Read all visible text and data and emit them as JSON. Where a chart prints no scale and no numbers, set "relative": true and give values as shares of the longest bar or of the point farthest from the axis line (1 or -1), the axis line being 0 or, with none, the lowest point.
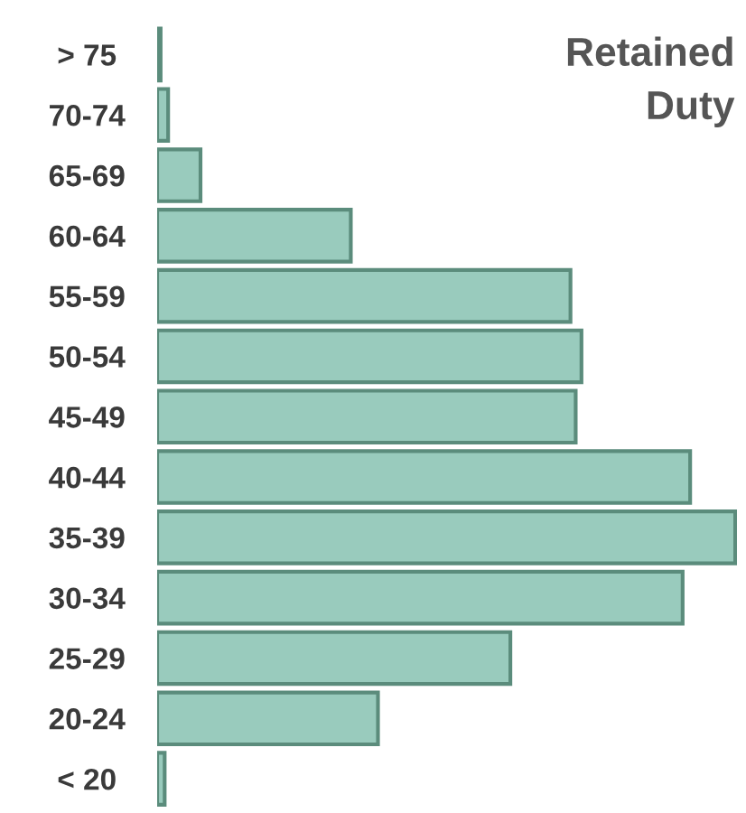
{
  "chart_data": {
    "type": "bar",
    "orientation": "horizontal",
    "relative": true,
    "title": "Retained\nDuty",
    "categories": [
      "> 75",
      "70-74",
      "65-69",
      "60-64",
      "55-59",
      "50-54",
      "45-49",
      "40-44",
      "35-39",
      "30-34",
      "25-29",
      "20-24",
      "< 20"
    ],
    "values": [
      0.006,
      0.019,
      0.075,
      0.335,
      0.715,
      0.734,
      0.724,
      0.922,
      1,
      0.909,
      0.611,
      0.382,
      0.013
    ],
    "color": "#99cbbd",
    "grid": false,
    "legend": false
  }
}
